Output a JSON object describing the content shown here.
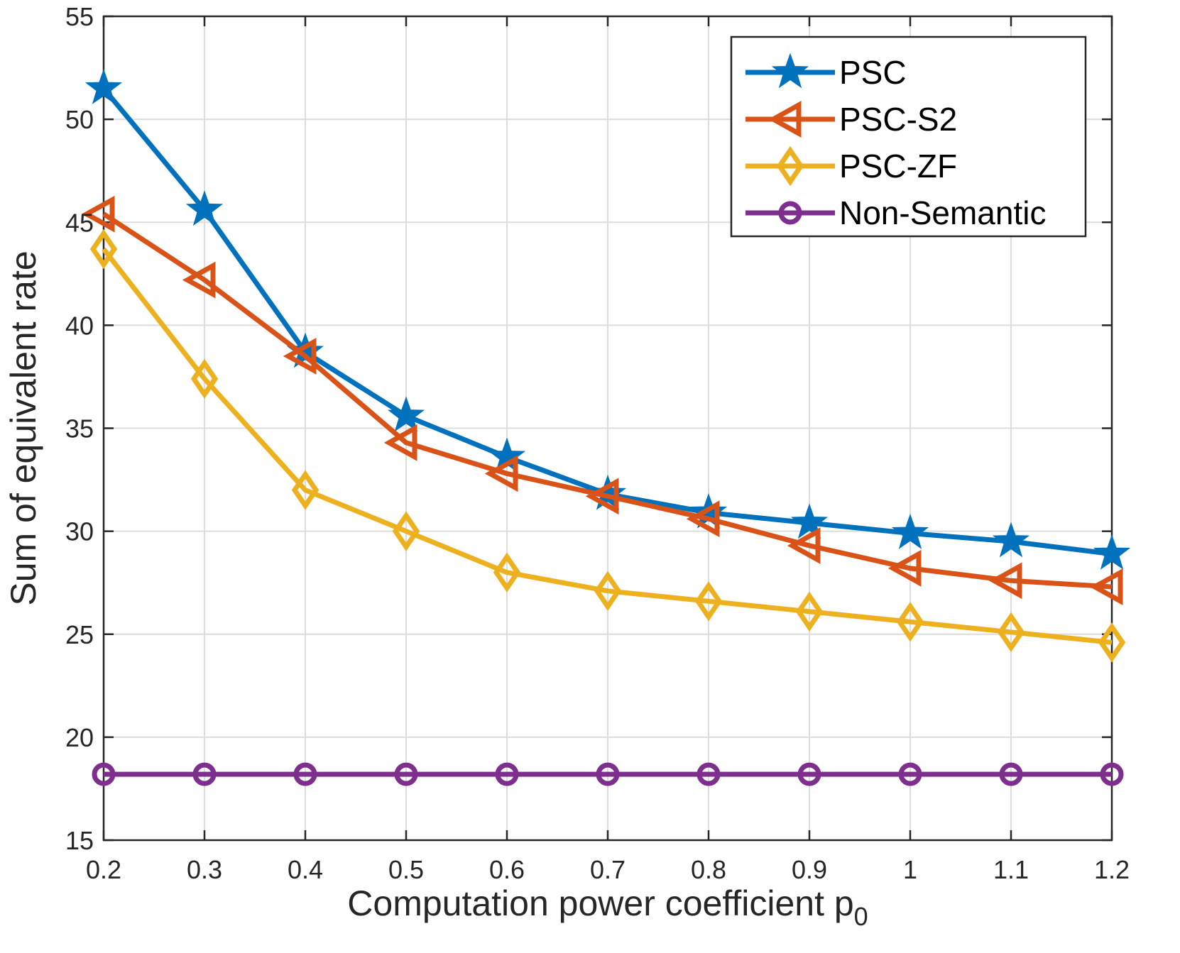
{
  "chart_data": {
    "type": "line",
    "title": "",
    "xlabel": "Computation power coefficient p",
    "xlabel_subscript": "0",
    "ylabel": "Sum of equivalent rate",
    "xlim": [
      0.2,
      1.2
    ],
    "ylim": [
      15,
      55
    ],
    "grid": true,
    "legend_position": "top-right",
    "x": [
      0.2,
      0.3,
      0.4,
      0.5,
      0.6,
      0.7,
      0.8,
      0.9,
      1.0,
      1.1,
      1.2
    ],
    "x_tick_labels": [
      "0.2",
      "0.3",
      "0.4",
      "0.5",
      "0.6",
      "0.7",
      "0.8",
      "0.9",
      "1",
      "1.1",
      "1.2"
    ],
    "y_ticks": [
      15,
      20,
      25,
      30,
      35,
      40,
      45,
      50,
      55
    ],
    "y_tick_labels": [
      "15",
      "20",
      "25",
      "30",
      "35",
      "40",
      "45",
      "50",
      "55"
    ],
    "series": [
      {
        "name": "PSC",
        "color": "#0072BD",
        "marker": "star",
        "values": [
          51.5,
          45.6,
          38.7,
          35.6,
          33.6,
          31.8,
          30.9,
          30.4,
          29.9,
          29.5,
          28.9
        ]
      },
      {
        "name": "PSC-S2",
        "color": "#D95319",
        "marker": "triangle-left",
        "values": [
          45.4,
          42.2,
          38.5,
          34.3,
          32.8,
          31.7,
          30.6,
          29.3,
          28.2,
          27.6,
          27.3
        ]
      },
      {
        "name": "PSC-ZF",
        "color": "#EDB120",
        "marker": "diamond",
        "values": [
          43.7,
          37.4,
          32.0,
          30.0,
          28.0,
          27.1,
          26.6,
          26.1,
          25.6,
          25.1,
          24.6
        ]
      },
      {
        "name": "Non-Semantic",
        "color": "#7E2F8E",
        "marker": "circle",
        "values": [
          18.2,
          18.2,
          18.2,
          18.2,
          18.2,
          18.2,
          18.2,
          18.2,
          18.2,
          18.2,
          18.2
        ]
      }
    ]
  }
}
